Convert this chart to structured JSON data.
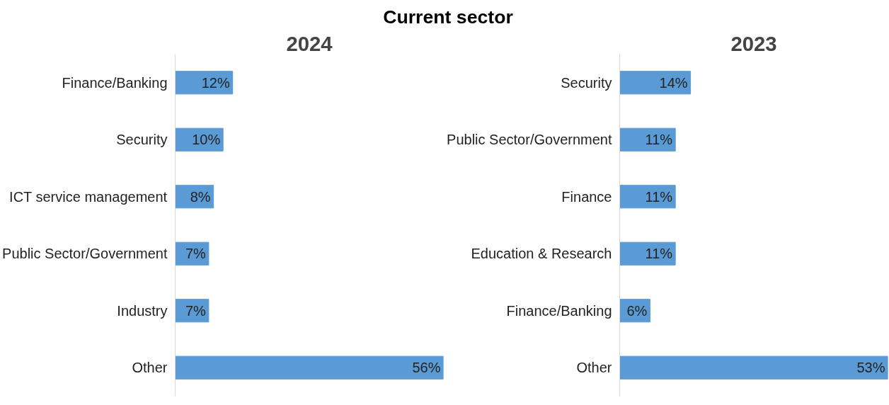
{
  "chart_data": [
    {
      "type": "bar",
      "orientation": "horizontal",
      "title": "2024",
      "annotations": [
        "Current sector"
      ],
      "categories": [
        "Finance/Banking",
        "Security",
        "ICT service management",
        "Public Sector/Government",
        "Industry",
        "Other"
      ],
      "values": [
        12,
        10,
        8,
        7,
        7,
        56
      ],
      "value_labels": [
        "12%",
        "10%",
        "8%",
        "7%",
        "7%",
        "56%"
      ],
      "color": "#5b9bd5",
      "grid": false,
      "tick_labels": "y"
    },
    {
      "type": "bar",
      "orientation": "horizontal",
      "title": "2023",
      "categories": [
        "Security",
        "Public Sector/Government",
        "Finance",
        "Education & Research",
        "Finance/Banking",
        "Other"
      ],
      "values": [
        14,
        11,
        11,
        11,
        6,
        53
      ],
      "value_labels": [
        "14%",
        "11%",
        "11%",
        "11%",
        "6%",
        "53%"
      ],
      "color": "#5b9bd5",
      "grid": false,
      "tick_labels": "y"
    }
  ]
}
